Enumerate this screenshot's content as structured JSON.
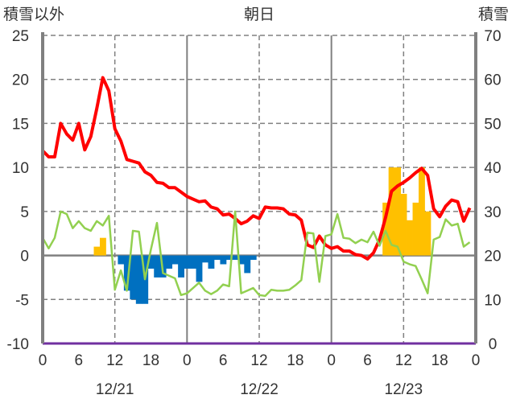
{
  "chart_data": {
    "type": "bar+line",
    "title": "朝日",
    "left_axis_label": "積雪以外",
    "right_axis_label": "積雪",
    "ylim_left": [
      -10,
      25
    ],
    "ylim_right": [
      0,
      70
    ],
    "left_ticks": [
      "25",
      "20",
      "15",
      "10",
      "5",
      "0",
      "-5",
      "-10"
    ],
    "right_ticks": [
      "70",
      "60",
      "50",
      "40",
      "30",
      "20",
      "10",
      "0"
    ],
    "x_hours": 72,
    "x_tick_labels": [
      "0",
      "6",
      "12",
      "18",
      "0",
      "6",
      "12",
      "18",
      "0",
      "6",
      "12",
      "18",
      "0"
    ],
    "date_labels": [
      {
        "hour": 12,
        "text": "12/21"
      },
      {
        "hour": 36,
        "text": "12/22"
      },
      {
        "hour": 60,
        "text": "12/23"
      }
    ],
    "grid": true,
    "colors": {
      "positive_bar": "#FFC000",
      "negative_bar": "#0070C0",
      "red_line": "#FF0000",
      "green_line": "#92D050",
      "snow_line": "#7030A0",
      "grid": "#808080"
    },
    "bars": [
      0,
      0,
      0,
      0,
      0,
      0,
      0,
      0,
      0,
      1,
      2,
      0,
      0,
      -1,
      -4,
      -5,
      -5.5,
      -5.5,
      -1.5,
      -2.5,
      -2.5,
      -1.5,
      -1,
      -2.5,
      -1.5,
      -1.5,
      -3,
      -0.8,
      -1.5,
      -0.5,
      -1,
      -0.5,
      -0.5,
      -1,
      -2,
      -0.5,
      0,
      0,
      0,
      0,
      0,
      0,
      0,
      0,
      0,
      0,
      0,
      0,
      0,
      0,
      0,
      0,
      0,
      0,
      0,
      0,
      0,
      6,
      10,
      10,
      7,
      4,
      6,
      10,
      5,
      0,
      0,
      0,
      0,
      0,
      0,
      0
    ],
    "series": [
      {
        "name": "red",
        "axis": "left",
        "values": [
          11.9,
          11.2,
          11.2,
          15,
          13.8,
          13.1,
          15,
          12,
          13.5,
          16.7,
          20.2,
          18.7,
          14.4,
          13,
          10.9,
          10.7,
          10.5,
          9.5,
          9.1,
          8.3,
          8.2,
          7.7,
          7.7,
          7.2,
          6.7,
          6.4,
          6.1,
          6.2,
          5.5,
          5.3,
          4.6,
          4.7,
          4.2,
          3.6,
          3.9,
          4.5,
          4.2,
          5.5,
          5.4,
          5.4,
          5.3,
          4.7,
          4.6,
          4.0,
          1.2,
          0.9,
          2.2,
          1.2,
          0.8,
          1.0,
          0.5,
          0.5,
          0.1,
          0,
          -0.4,
          0.3,
          1.8,
          4.3,
          7.3,
          7.9,
          8.3,
          8.8,
          9.4,
          9.9,
          9.1,
          5.3,
          4.4,
          5.6,
          6.3,
          6.1,
          3.9,
          5.4
        ]
      },
      {
        "name": "green",
        "axis": "left",
        "values": [
          2,
          0.8,
          2,
          5,
          4.7,
          3.1,
          3.9,
          3.1,
          2.8,
          3.9,
          3.4,
          4.5,
          -3.9,
          -1.7,
          -4,
          2.8,
          2.7,
          -2.7,
          0.7,
          3.7,
          -2,
          -2.3,
          -2.6,
          -4.5,
          -4.3,
          -3.7,
          -3.1,
          -4,
          -4.4,
          -4,
          -3.3,
          -3.5,
          5,
          -4.3,
          -4,
          -3.7,
          -4.5,
          -4.6,
          -3.9,
          -4,
          -4,
          -3.9,
          -3.4,
          -2.8,
          2.6,
          2.5,
          -3,
          2.2,
          2.4,
          4.7,
          2,
          1.9,
          1.4,
          1.8,
          1.5,
          2.7,
          1.1,
          2.8,
          1.2,
          1,
          -0.7,
          -1,
          -1.2,
          -2.7,
          -4.3,
          1.8,
          2.1,
          4.1,
          3.4,
          3.6,
          1,
          1.5
        ]
      },
      {
        "name": "snow",
        "axis": "right",
        "values": [
          0,
          0,
          0,
          0,
          0,
          0,
          0,
          0,
          0,
          0,
          0,
          0,
          0,
          0,
          0,
          0,
          0,
          0,
          0,
          0,
          0,
          0,
          0,
          0,
          0,
          0,
          0,
          0,
          0,
          0,
          0,
          0,
          0,
          0,
          0,
          0,
          0,
          0,
          0,
          0,
          0,
          0,
          0,
          0,
          0,
          0,
          0,
          0,
          0,
          0,
          0,
          0,
          0,
          0,
          0,
          0,
          0,
          0,
          0,
          0,
          0,
          0,
          0,
          0,
          0,
          0,
          0,
          0,
          0,
          0,
          0,
          0,
          0
        ]
      }
    ]
  }
}
